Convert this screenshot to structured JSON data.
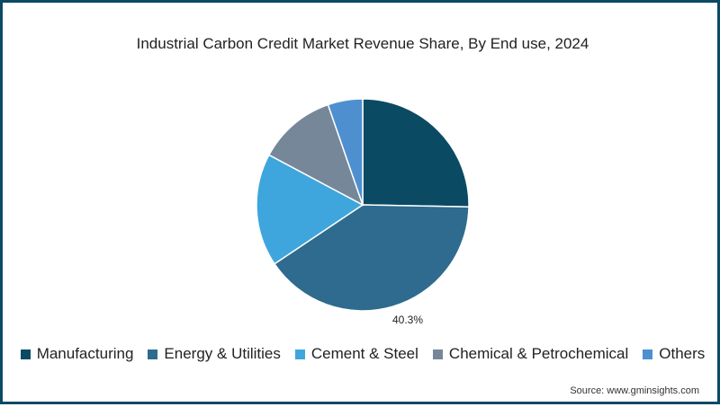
{
  "title": "Industrial Carbon Credit Market Revenue Share, By End use, 2024",
  "source": "Source: www.gminsights.com",
  "border_color": "#0b4a63",
  "data_label": "40.3%",
  "legend": [
    {
      "label": "Manufacturing",
      "color": "#0b4a63"
    },
    {
      "label": "Energy & Utilities",
      "color": "#2e6b8e"
    },
    {
      "label": "Cement & Steel",
      "color": "#3ea6dc"
    },
    {
      "label": "Chemical & Petrochemical",
      "color": "#768799"
    },
    {
      "label": "Others",
      "color": "#4e8fd0"
    }
  ],
  "chart_data": {
    "type": "pie",
    "title": "Industrial Carbon Credit Market Revenue Share, By End use, 2024",
    "categories": [
      "Manufacturing",
      "Energy & Utilities",
      "Cement & Steel",
      "Chemical & Petrochemical",
      "Others"
    ],
    "values": [
      25.3,
      40.3,
      17.2,
      11.9,
      5.3
    ],
    "colors": [
      "#0b4a63",
      "#2e6b8e",
      "#3ea6dc",
      "#768799",
      "#4e8fd0"
    ],
    "labeled_values": {
      "Energy & Utilities": "40.3%"
    },
    "start_angle": "12 o'clock, clockwise",
    "legend_position": "bottom",
    "source": "Source: www.gminsights.com"
  }
}
